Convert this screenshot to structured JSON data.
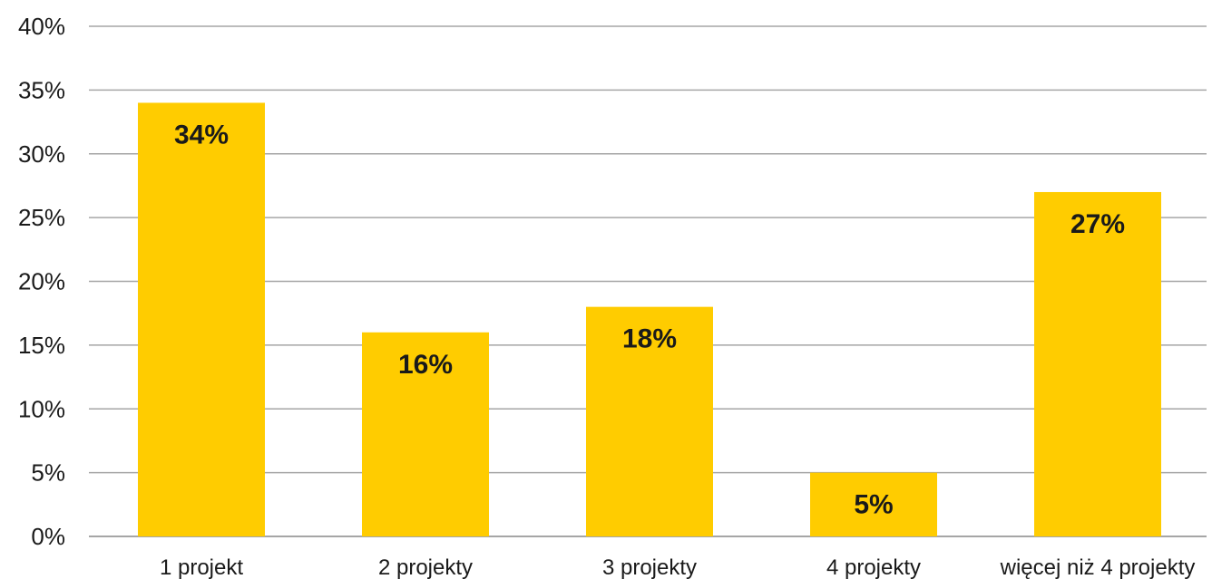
{
  "chart_data": {
    "type": "bar",
    "title": "",
    "xlabel": "",
    "ylabel": "",
    "categories": [
      "1 projekt",
      "2 projekty",
      "3 projekty",
      "4 projekty",
      "więcej niż 4 projekty"
    ],
    "values": [
      34,
      16,
      18,
      5,
      27
    ],
    "data_labels": [
      "34%",
      "16%",
      "18%",
      "5%",
      "27%"
    ],
    "ylim": [
      0,
      40
    ],
    "yticks": [
      0,
      5,
      10,
      15,
      20,
      25,
      30,
      35,
      40
    ],
    "ytick_labels": [
      "0%",
      "5%",
      "10%",
      "15%",
      "20%",
      "25%",
      "30%",
      "35%",
      "40%"
    ],
    "grid": true,
    "legend": "none",
    "colors": {
      "bar": "#FFCC00",
      "grid": "#A6A6A6",
      "text": "#1A1A1A"
    }
  }
}
